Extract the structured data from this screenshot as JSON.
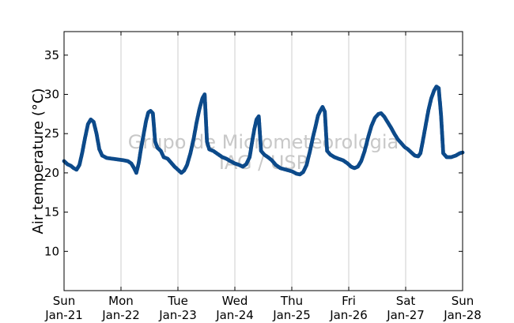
{
  "chart_data": {
    "type": "scatter",
    "title": "",
    "ylabel": "Air temperature (°C)",
    "xlabel": "",
    "x_range_days": [
      0,
      7
    ],
    "ylim": [
      5,
      38
    ],
    "yticks": [
      10,
      15,
      20,
      25,
      30,
      35
    ],
    "x_ticks": [
      {
        "day": 0,
        "weekday": "Sun",
        "date": "Jan-21"
      },
      {
        "day": 1,
        "weekday": "Mon",
        "date": "Jan-22"
      },
      {
        "day": 2,
        "weekday": "Tue",
        "date": "Jan-23"
      },
      {
        "day": 3,
        "weekday": "Wed",
        "date": "Jan-24"
      },
      {
        "day": 4,
        "weekday": "Thu",
        "date": "Jan-25"
      },
      {
        "day": 5,
        "weekday": "Fri",
        "date": "Jan-26"
      },
      {
        "day": 6,
        "weekday": "Sat",
        "date": "Jan-27"
      },
      {
        "day": 7,
        "weekday": "Sun",
        "date": "Jan-28"
      }
    ],
    "grid": "vertical",
    "watermark": [
      "Grupo de Micrometeorologia",
      "IAG / USP"
    ],
    "marker_color": "#0d4a8a",
    "series": [
      {
        "name": "",
        "points": [
          [
            0.0,
            21.5
          ],
          [
            0.06,
            21.1
          ],
          [
            0.12,
            20.9
          ],
          [
            0.17,
            20.6
          ],
          [
            0.22,
            20.4
          ],
          [
            0.27,
            21.0
          ],
          [
            0.32,
            22.6
          ],
          [
            0.37,
            24.5
          ],
          [
            0.42,
            26.2
          ],
          [
            0.47,
            26.8
          ],
          [
            0.52,
            26.5
          ],
          [
            0.57,
            25.0
          ],
          [
            0.62,
            23.0
          ],
          [
            0.67,
            22.2
          ],
          [
            0.75,
            21.9
          ],
          [
            0.85,
            21.8
          ],
          [
            0.95,
            21.7
          ],
          [
            1.05,
            21.6
          ],
          [
            1.12,
            21.5
          ],
          [
            1.18,
            21.2
          ],
          [
            1.23,
            20.6
          ],
          [
            1.27,
            20.0
          ],
          [
            1.31,
            21.2
          ],
          [
            1.35,
            23.0
          ],
          [
            1.4,
            25.0
          ],
          [
            1.44,
            26.6
          ],
          [
            1.48,
            27.7
          ],
          [
            1.52,
            27.9
          ],
          [
            1.56,
            27.6
          ],
          [
            1.6,
            24.0
          ],
          [
            1.64,
            23.2
          ],
          [
            1.7,
            22.8
          ],
          [
            1.75,
            22.0
          ],
          [
            1.82,
            21.8
          ],
          [
            1.88,
            21.3
          ],
          [
            1.94,
            20.8
          ],
          [
            2.0,
            20.4
          ],
          [
            2.06,
            20.0
          ],
          [
            2.11,
            20.3
          ],
          [
            2.16,
            21.0
          ],
          [
            2.22,
            22.5
          ],
          [
            2.28,
            24.5
          ],
          [
            2.33,
            26.5
          ],
          [
            2.38,
            28.2
          ],
          [
            2.43,
            29.5
          ],
          [
            2.47,
            30.0
          ],
          [
            2.51,
            24.0
          ],
          [
            2.55,
            23.0
          ],
          [
            2.62,
            22.8
          ],
          [
            2.7,
            22.4
          ],
          [
            2.78,
            22.0
          ],
          [
            2.85,
            21.8
          ],
          [
            2.92,
            21.5
          ],
          [
            3.0,
            21.2
          ],
          [
            3.08,
            21.0
          ],
          [
            3.14,
            20.8
          ],
          [
            3.2,
            21.1
          ],
          [
            3.26,
            22.0
          ],
          [
            3.3,
            23.8
          ],
          [
            3.34,
            25.5
          ],
          [
            3.38,
            26.8
          ],
          [
            3.42,
            27.2
          ],
          [
            3.46,
            22.8
          ],
          [
            3.52,
            22.3
          ],
          [
            3.58,
            22.0
          ],
          [
            3.65,
            21.6
          ],
          [
            3.72,
            21.0
          ],
          [
            3.8,
            20.6
          ],
          [
            3.9,
            20.4
          ],
          [
            4.0,
            20.2
          ],
          [
            4.08,
            19.9
          ],
          [
            4.14,
            19.8
          ],
          [
            4.2,
            20.1
          ],
          [
            4.26,
            21.0
          ],
          [
            4.32,
            22.8
          ],
          [
            4.37,
            24.5
          ],
          [
            4.42,
            26.0
          ],
          [
            4.46,
            27.3
          ],
          [
            4.5,
            27.9
          ],
          [
            4.54,
            28.4
          ],
          [
            4.58,
            27.8
          ],
          [
            4.62,
            22.8
          ],
          [
            4.68,
            22.3
          ],
          [
            4.75,
            22.0
          ],
          [
            4.82,
            21.8
          ],
          [
            4.9,
            21.6
          ],
          [
            4.98,
            21.2
          ],
          [
            5.04,
            20.8
          ],
          [
            5.1,
            20.6
          ],
          [
            5.16,
            20.8
          ],
          [
            5.22,
            21.5
          ],
          [
            5.28,
            22.8
          ],
          [
            5.34,
            24.5
          ],
          [
            5.4,
            26.0
          ],
          [
            5.46,
            27.0
          ],
          [
            5.52,
            27.5
          ],
          [
            5.57,
            27.6
          ],
          [
            5.62,
            27.2
          ],
          [
            5.68,
            26.5
          ],
          [
            5.74,
            25.8
          ],
          [
            5.8,
            25.0
          ],
          [
            5.86,
            24.3
          ],
          [
            5.92,
            23.8
          ],
          [
            5.98,
            23.3
          ],
          [
            6.04,
            23.0
          ],
          [
            6.1,
            22.6
          ],
          [
            6.16,
            22.2
          ],
          [
            6.22,
            22.1
          ],
          [
            6.26,
            22.5
          ],
          [
            6.3,
            24.0
          ],
          [
            6.35,
            26.0
          ],
          [
            6.4,
            28.0
          ],
          [
            6.45,
            29.5
          ],
          [
            6.5,
            30.5
          ],
          [
            6.54,
            31.0
          ],
          [
            6.58,
            30.8
          ],
          [
            6.62,
            27.5
          ],
          [
            6.66,
            22.5
          ],
          [
            6.72,
            22.0
          ],
          [
            6.8,
            22.0
          ],
          [
            6.88,
            22.2
          ],
          [
            6.95,
            22.5
          ],
          [
            7.0,
            22.6
          ]
        ]
      }
    ]
  }
}
